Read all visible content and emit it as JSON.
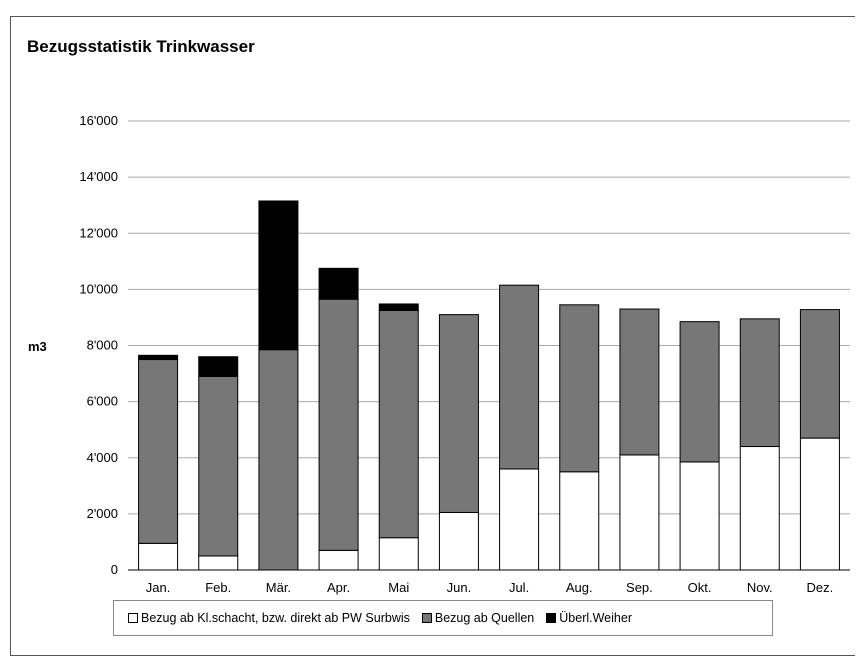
{
  "chart_data": {
    "type": "bar",
    "stacked": true,
    "title": "Bezugsstatistik Trinkwasser",
    "ylabel": "m3",
    "xlabel": "",
    "ylim": [
      0,
      16000
    ],
    "yticks": [
      0,
      2000,
      4000,
      6000,
      8000,
      10000,
      12000,
      14000,
      16000
    ],
    "ytick_labels": [
      "0",
      "2'000",
      "4'000",
      "6'000",
      "8'000",
      "10'000",
      "12'000",
      "14'000",
      "16'000"
    ],
    "grid": true,
    "legend_position": "bottom",
    "categories": [
      "Jan.",
      "Feb.",
      "Mär.",
      "Apr.",
      "Mai",
      "Jun.",
      "Jul.",
      "Aug.",
      "Sep.",
      "Okt.",
      "Nov.",
      "Dez."
    ],
    "series": [
      {
        "name": "Bezug ab Kl.schacht, bzw. direkt ab PW Surbwis",
        "color": "#ffffff",
        "values": [
          950,
          500,
          0,
          700,
          1150,
          2050,
          3600,
          3500,
          4100,
          3850,
          4400,
          4700
        ]
      },
      {
        "name": "Bezug ab Quellen",
        "color": "#777777",
        "values": [
          6550,
          6400,
          7850,
          8950,
          8100,
          7050,
          6550,
          5950,
          5200,
          5000,
          4550,
          4580
        ]
      },
      {
        "name": "Überl.Weiher",
        "color": "#000000",
        "values": [
          150,
          700,
          5300,
          1100,
          230,
          0,
          0,
          0,
          0,
          0,
          0,
          0
        ]
      }
    ]
  }
}
